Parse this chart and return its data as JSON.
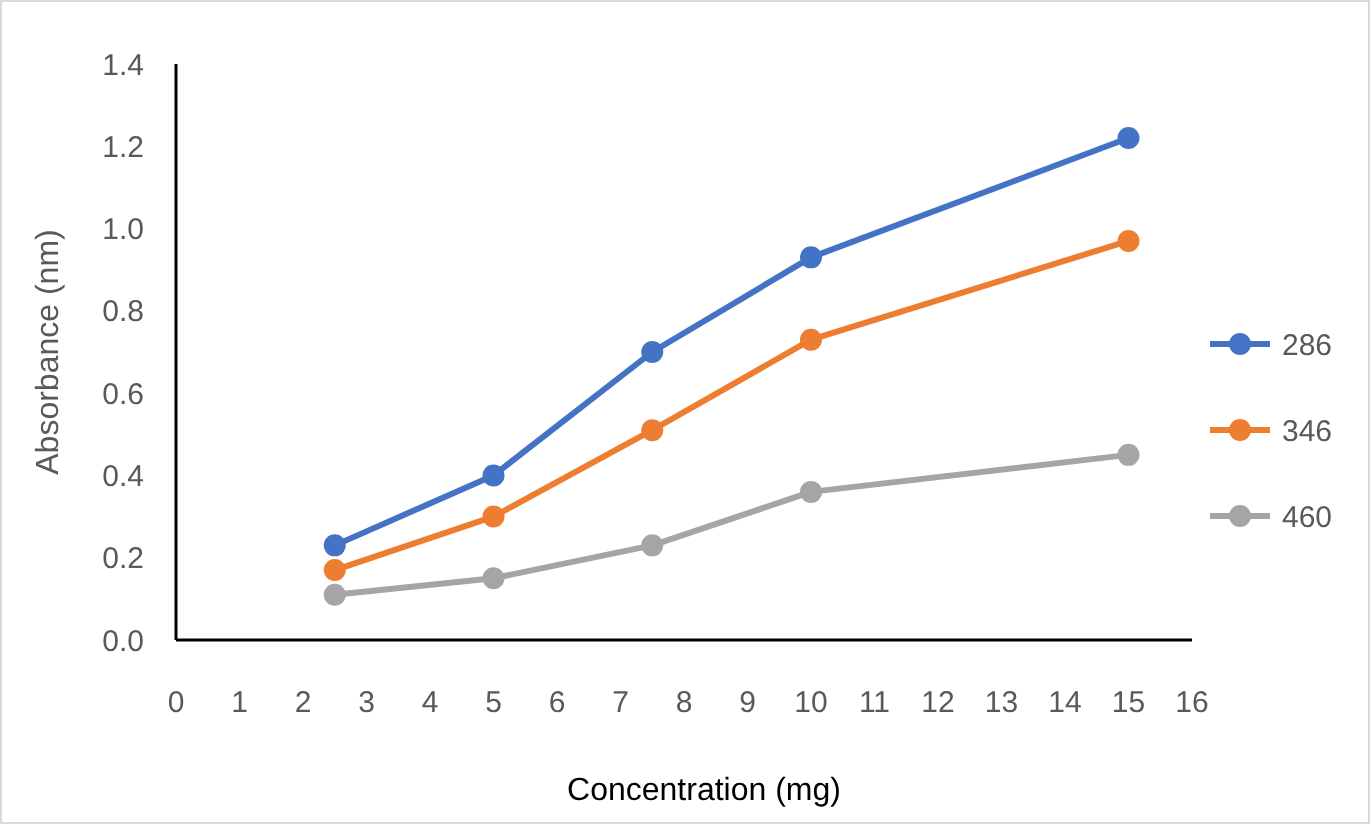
{
  "chart_data": {
    "type": "line",
    "xlabel": "Concentration (mg)",
    "ylabel": "Absorbance (nm)",
    "x": [
      2.5,
      5,
      7.5,
      10,
      15
    ],
    "series": [
      {
        "name": "286",
        "color": "#4472c4",
        "values": [
          0.23,
          0.4,
          0.7,
          0.93,
          1.22
        ]
      },
      {
        "name": "346",
        "color": "#ed7d31",
        "values": [
          0.17,
          0.3,
          0.51,
          0.73,
          0.97
        ]
      },
      {
        "name": "460",
        "color": "#a5a5a5",
        "values": [
          0.11,
          0.15,
          0.23,
          0.36,
          0.45
        ]
      }
    ],
    "xlim": [
      0,
      16
    ],
    "xticks": [
      0,
      1,
      2,
      3,
      4,
      5,
      6,
      7,
      8,
      9,
      10,
      11,
      12,
      13,
      14,
      15,
      16
    ],
    "ylim": [
      0,
      1.4
    ],
    "yticks": [
      {
        "value": 0,
        "label": "0.0"
      },
      {
        "value": 0.2,
        "label": "0.2"
      },
      {
        "value": 0.4,
        "label": "0.4"
      },
      {
        "value": 0.6,
        "label": "0.6"
      },
      {
        "value": 0.8,
        "label": "0.8"
      },
      {
        "value": 1,
        "label": "1.0"
      },
      {
        "value": 1.2,
        "label": "1.2"
      },
      {
        "value": 1.4,
        "label": "1.4"
      }
    ],
    "grid": false,
    "legend": "right",
    "marker": "circle",
    "line_style": "solid"
  }
}
